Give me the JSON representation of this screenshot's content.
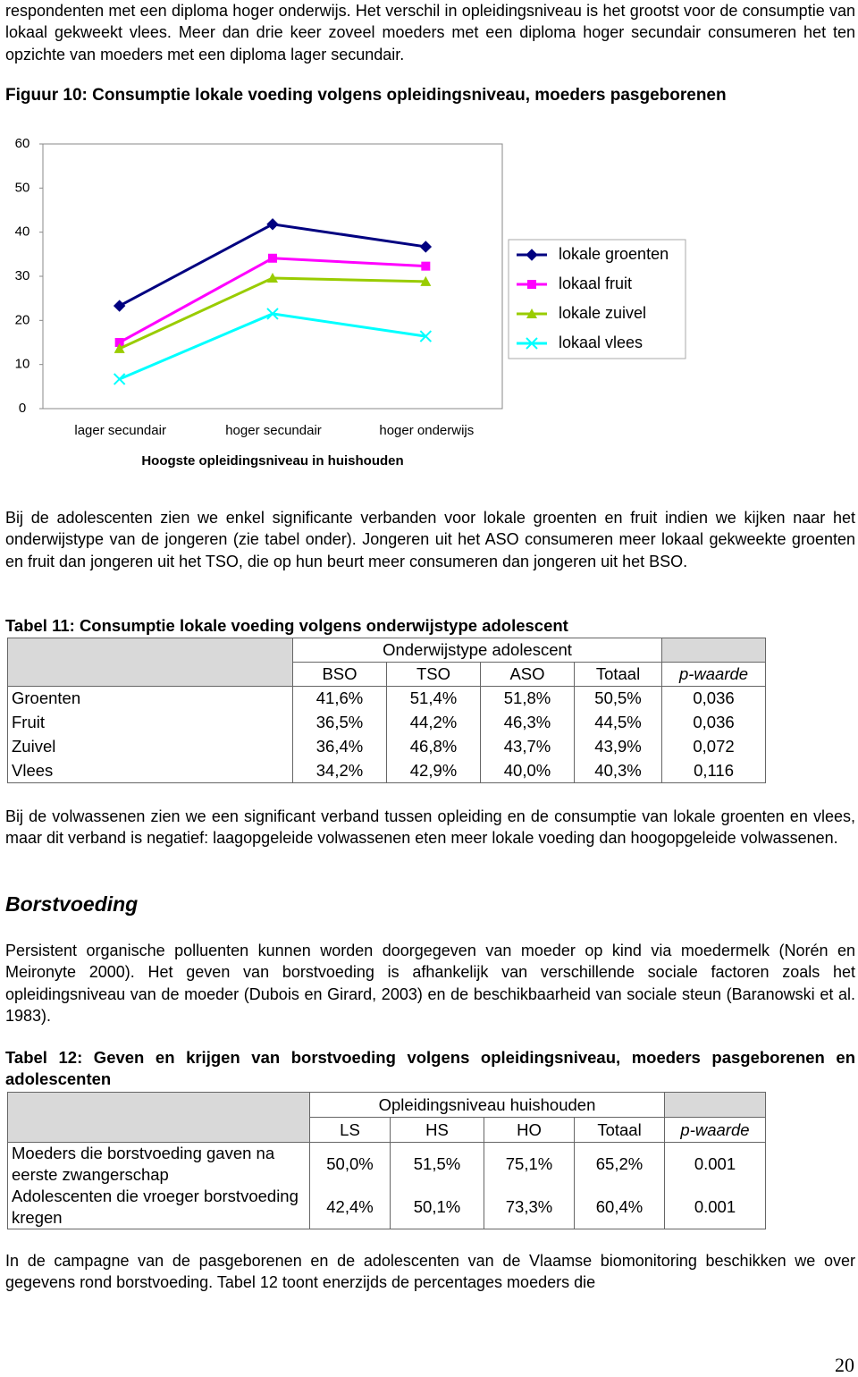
{
  "paragraphs": [
    "respondenten met een diploma hoger onderwijs. Het verschil in opleidingsniveau is het grootst voor de consumptie van lokaal gekweekt vlees. Meer dan drie keer zoveel moeders met een diploma hoger secundair consumeren het ten opzichte van moeders met een diploma lager secundair.",
    "Bij de adolescenten zien we enkel significante verbanden voor lokale groenten en fruit indien we kijken naar het onderwijstype van de jongeren (zie tabel onder). Jongeren uit het ASO consumeren meer lokaal gekweekte groenten en fruit dan jongeren uit het TSO, die op hun beurt meer consumeren dan jongeren uit het BSO.",
    "Bij de volwassenen zien we een significant verband tussen opleiding en de consumptie van lokale groenten en vlees, maar dit verband is negatief: laagopgeleide volwassenen eten meer lokale voeding dan hoogopgeleide volwassenen.",
    "Persistent organische polluenten kunnen worden doorgegeven van moeder op kind via moedermelk (Norén en Meironyte 2000). Het geven van borstvoeding is afhankelijk van verschillende sociale factoren zoals het opleidingsniveau van de moeder (Dubois en Girard, 2003) en de beschikbaarheid van sociale steun (Baranowski et al. 1983).",
    "In de campagne van de pasgeborenen en de adolescenten van de Vlaamse biomonitoring beschikken we over gegevens rond borstvoeding. Tabel 12 toont enerzijds de percentages moeders die"
  ],
  "figure_title": "Figuur 10: Consumptie lokale voeding volgens opleidingsniveau, moeders pasgeborenen",
  "chart_data": {
    "type": "line",
    "categories": [
      "lager secundair",
      "hoger secundair",
      "hoger onderwijs"
    ],
    "x_label": "Hoogste opleidingsniveau in huishouden",
    "series": [
      {
        "name": "lokale groenten",
        "color": "#000080",
        "marker": "diamond",
        "values": [
          23.3,
          41.8,
          36.7
        ]
      },
      {
        "name": "lokaal fruit",
        "color": "#ff00ff",
        "marker": "square",
        "values": [
          15.0,
          34.1,
          32.3
        ]
      },
      {
        "name": "lokale zuivel",
        "color": "#99cc00",
        "marker": "triangle",
        "values": [
          13.6,
          29.6,
          28.8
        ]
      },
      {
        "name": "lokaal vlees",
        "color": "#00ffff",
        "marker": "x",
        "values": [
          6.7,
          21.5,
          16.4
        ]
      }
    ],
    "ylim": [
      0,
      60
    ],
    "yticks": [
      0,
      10,
      20,
      30,
      40,
      50,
      60
    ],
    "legend": "right"
  },
  "table11": {
    "title": "Tabel 11: Consumptie lokale voeding volgens onderwijstype adolescent",
    "group_header": "Onderwijstype adolescent",
    "columns": [
      "BSO",
      "TSO",
      "ASO",
      "Totaal",
      "p-waarde"
    ],
    "rows": [
      [
        "Groenten",
        "41,6%",
        "51,4%",
        "51,8%",
        "50,5%",
        "0,036"
      ],
      [
        "Fruit",
        "36,5%",
        "44,2%",
        "46,3%",
        "44,5%",
        "0,036"
      ],
      [
        "Zuivel",
        "36,4%",
        "46,8%",
        "43,7%",
        "43,9%",
        "0,072"
      ],
      [
        "Vlees",
        "34,2%",
        "42,9%",
        "40,0%",
        "40,3%",
        "0,116"
      ]
    ]
  },
  "heading": "Borstvoeding",
  "table12": {
    "title": "Tabel 12: Geven en krijgen van borstvoeding volgens opleidingsniveau, moeders pasgeborenen en adolescenten",
    "group_header": "Opleidingsniveau huishouden",
    "columns": [
      "LS",
      "HS",
      "HO",
      "Totaal",
      "p-waarde"
    ],
    "rows": [
      [
        "Moeders die borstvoeding gaven na eerste zwangerschap",
        "50,0%",
        "51,5%",
        "75,1%",
        "65,2%",
        "0.001"
      ],
      [
        "Adolescenten die vroeger borstvoeding kregen",
        "42,4%",
        "50,1%",
        "73,3%",
        "60,4%",
        "0.001"
      ]
    ]
  },
  "page_number": "20"
}
